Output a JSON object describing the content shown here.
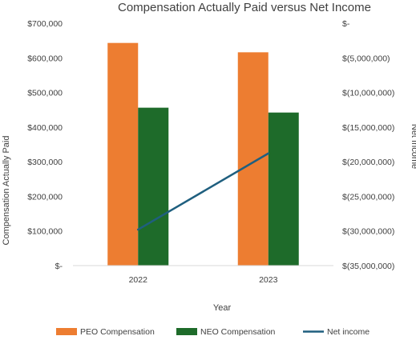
{
  "chart_data": {
    "type": "bar",
    "title": "Compensation Actually Paid versus Net Income",
    "xlabel": "Year",
    "ylabel": "Compensation  Actually Paid",
    "y2label": "Net Income",
    "categories": [
      "2022",
      "2023"
    ],
    "ylim": [
      0,
      700000
    ],
    "y_ticks": [
      "$-",
      "$100,000",
      "$200,000",
      "$300,000",
      "$400,000",
      "$500,000",
      "$600,000",
      "$700,000"
    ],
    "y2lim": [
      -35000000,
      0
    ],
    "y2_ticks": [
      "$(35,000,000)",
      "$(30,000,000)",
      "$(25,000,000)",
      "$(20,000,000)",
      "$(15,000,000)",
      "$(10,000,000)",
      "$(5,000,000)",
      "$-"
    ],
    "grid": false,
    "legend_position": "bottom",
    "series": [
      {
        "name": "PEO Compensation",
        "type": "bar",
        "axis": "left",
        "color": "#ED7D31",
        "values": [
          643000,
          616000
        ]
      },
      {
        "name": "NEO Compensation",
        "type": "bar",
        "axis": "left",
        "color": "#1E6B2A",
        "values": [
          456000,
          442000
        ]
      },
      {
        "name": "Net income",
        "type": "line",
        "axis": "right",
        "color": "#1F5F7F",
        "values": [
          -29800000,
          -18800000
        ]
      }
    ]
  }
}
